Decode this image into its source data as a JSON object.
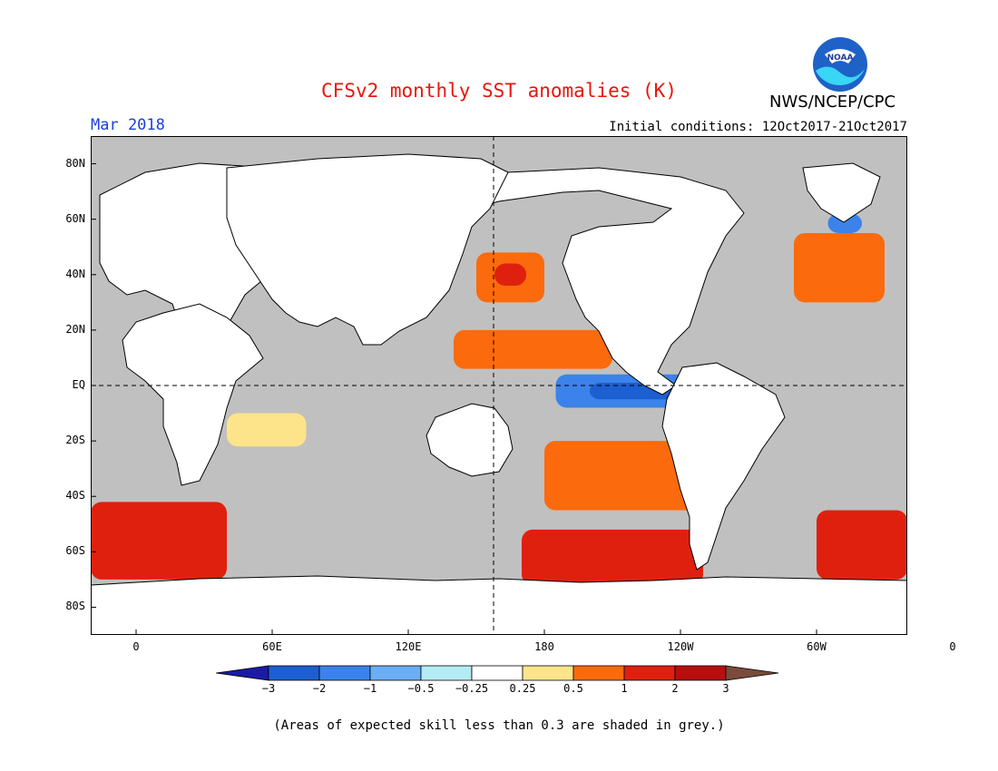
{
  "header": {
    "title": "CFSv2 monthly SST anomalies (K)",
    "month": "Mar 2018",
    "initial_conditions": "Initial conditions: 12Oct2017-21Oct2017",
    "agency": "NWS/NCEP/CPC",
    "logo_text": "NOAA"
  },
  "map": {
    "lat_labels": [
      "80N",
      "60N",
      "40N",
      "20N",
      "EQ",
      "20S",
      "40S",
      "60S",
      "80S"
    ],
    "lon_labels": [
      "0",
      "60E",
      "120E",
      "180",
      "120W",
      "60W",
      "0"
    ],
    "lat_range": [
      -90,
      90
    ],
    "lon_range": [
      -20,
      340
    ],
    "land_color": "#ffffff",
    "low_skill_color": "#c0c0c0",
    "anomaly_regions": [
      {
        "name": "eq-pacific-cold",
        "lon": [
          185,
          265
        ],
        "lat": [
          -8,
          4
        ],
        "level": -1
      },
      {
        "name": "eq-pacific-cold-core",
        "lon": [
          200,
          255
        ],
        "lat": [
          -5,
          1
        ],
        "level": -2
      },
      {
        "name": "n-pacific-warm",
        "lon": [
          140,
          210
        ],
        "lat": [
          6,
          20
        ],
        "level": 1
      },
      {
        "name": "nw-pacific-warm",
        "lon": [
          150,
          180
        ],
        "lat": [
          30,
          48
        ],
        "level": 1
      },
      {
        "name": "nw-pacific-hot",
        "lon": [
          158,
          172
        ],
        "lat": [
          36,
          44
        ],
        "level": 2
      },
      {
        "name": "s-pacific-warm",
        "lon": [
          180,
          250
        ],
        "lat": [
          -45,
          -20
        ],
        "level": 1
      },
      {
        "name": "southern-ocean-hot",
        "lon": [
          170,
          250
        ],
        "lat": [
          -72,
          -52
        ],
        "level": 2
      },
      {
        "name": "s-atlantic-hot",
        "lon": [
          300,
          340
        ],
        "lat": [
          -70,
          -45
        ],
        "level": 2
      },
      {
        "name": "sw-indian-hot",
        "lon": [
          -20,
          40
        ],
        "lat": [
          -70,
          -42
        ],
        "level": 2
      },
      {
        "name": "n-atlantic-warm",
        "lon": [
          290,
          330
        ],
        "lat": [
          30,
          55
        ],
        "level": 1
      },
      {
        "name": "n-atlantic-cold",
        "lon": [
          305,
          320
        ],
        "lat": [
          55,
          62
        ],
        "level": -1
      },
      {
        "name": "indian-warm",
        "lon": [
          40,
          75
        ],
        "lat": [
          -22,
          -10
        ],
        "level": 0.5
      }
    ]
  },
  "colorbar": {
    "tick_labels": [
      "−3",
      "−2",
      "−1",
      "−0.5",
      "−0.25",
      "0.25",
      "0.5",
      "1",
      "2",
      "3"
    ],
    "colors": [
      "#1a1aa6",
      "#1c5fd0",
      "#3b82ea",
      "#6aaef5",
      "#b4ecf5",
      "#ffffff",
      "#fde48a",
      "#fb6a0c",
      "#e0200f",
      "#b80e0e",
      "#7a4b3a"
    ]
  },
  "footnote": "(Areas of expected skill less than 0.3 are shaded in grey.)"
}
